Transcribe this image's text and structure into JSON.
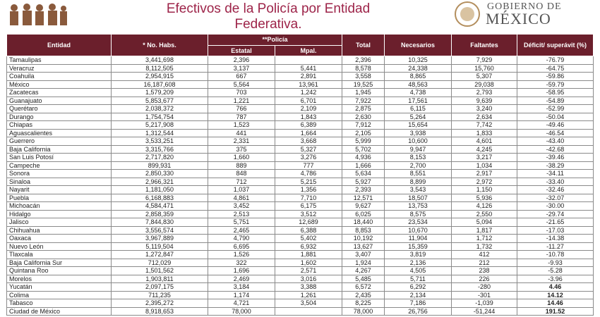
{
  "header": {
    "title_line1": "Efectivos de la Policía por Entidad",
    "title_line2": "Federativa.",
    "logo_line1": "GOBIERNO DE",
    "logo_line2": "MÉXICO"
  },
  "table": {
    "header_row": [
      "Entidad",
      "* No. Habs.",
      "**Policía",
      "Total",
      "Necesarios",
      "Faltantes",
      "Déficit/ superávit (%)"
    ],
    "sub_header": [
      "Estatal",
      "Mpal."
    ],
    "bold_rows": [
      28,
      29,
      30,
      31
    ],
    "rows": [
      [
        "Tamaulipas",
        "3,441,698",
        "2,396",
        null,
        "2,396",
        "10,325",
        "7,929",
        "-76.79"
      ],
      [
        "Veracruz",
        "8,112,505",
        "3,137",
        "5,441",
        "8,578",
        "24,338",
        "15,760",
        "-64.75"
      ],
      [
        "Coahuila",
        "2,954,915",
        "667",
        "2,891",
        "3,558",
        "8,865",
        "5,307",
        "-59.86"
      ],
      [
        "México",
        "16,187,608",
        "5,564",
        "13,961",
        "19,525",
        "48,563",
        "29,038",
        "-59.79"
      ],
      [
        "Zacatecas",
        "1,579,209",
        "703",
        "1,242",
        "1,945",
        "4,738",
        "2,793",
        "-58.95"
      ],
      [
        "Guanajuato",
        "5,853,677",
        "1,221",
        "6,701",
        "7,922",
        "17,561",
        "9,639",
        "-54.89"
      ],
      [
        "Querétaro",
        "2,038,372",
        "766",
        "2,109",
        "2,875",
        "6,115",
        "3,240",
        "-52.99"
      ],
      [
        "Durango",
        "1,754,754",
        "787",
        "1,843",
        "2,630",
        "5,264",
        "2,634",
        "-50.04"
      ],
      [
        "Chiapas",
        "5,217,908",
        "1,523",
        "6,389",
        "7,912",
        "15,654",
        "7,742",
        "-49.46"
      ],
      [
        "Aguascalientes",
        "1,312,544",
        "441",
        "1,664",
        "2,105",
        "3,938",
        "1,833",
        "-46.54"
      ],
      [
        "Guerrero",
        "3,533,251",
        "2,331",
        "3,668",
        "5,999",
        "10,600",
        "4,601",
        "-43.40"
      ],
      [
        "Baja California",
        "3,315,766",
        "375",
        "5,327",
        "5,702",
        "9,947",
        "4,245",
        "-42.68"
      ],
      [
        "San Luis Potosí",
        "2,717,820",
        "1,660",
        "3,276",
        "4,936",
        "8,153",
        "3,217",
        "-39.46"
      ],
      [
        "Campeche",
        "899,931",
        "889",
        "777",
        "1,666",
        "2,700",
        "1,034",
        "-38.29"
      ],
      [
        "Sonora",
        "2,850,330",
        "848",
        "4,786",
        "5,634",
        "8,551",
        "2,917",
        "-34.11"
      ],
      [
        "Sinaloa",
        "2,966,321",
        "712",
        "5,215",
        "5,927",
        "8,899",
        "2,972",
        "-33.40"
      ],
      [
        "Nayarit",
        "1,181,050",
        "1,037",
        "1,356",
        "2,393",
        "3,543",
        "1,150",
        "-32.46"
      ],
      [
        "Puebla",
        "6,168,883",
        "4,861",
        "7,710",
        "12,571",
        "18,507",
        "5,936",
        "-32.07"
      ],
      [
        "Michoacán",
        "4,584,471",
        "3,452",
        "6,175",
        "9,627",
        "13,753",
        "4,126",
        "-30.00"
      ],
      [
        "Hidalgo",
        "2,858,359",
        "2,513",
        "3,512",
        "6,025",
        "8,575",
        "2,550",
        "-29.74"
      ],
      [
        "Jalisco",
        "7,844,830",
        "5,751",
        "12,689",
        "18,440",
        "23,534",
        "5,094",
        "-21.65"
      ],
      [
        "Chihuahua",
        "3,556,574",
        "2,465",
        "6,388",
        "8,853",
        "10,670",
        "1,817",
        "-17.03"
      ],
      [
        "Oaxaca",
        "3,967,889",
        "4,790",
        "5,402",
        "10,192",
        "11,904",
        "1,712",
        "-14.38"
      ],
      [
        "Nuevo León",
        "5,119,504",
        "6,695",
        "6,932",
        "13,627",
        "15,359",
        "1,732",
        "-11.27"
      ],
      [
        "Tlaxcala",
        "1,272,847",
        "1,526",
        "1,881",
        "3,407",
        "3,819",
        "412",
        "-10.78"
      ],
      [
        "Baja California Sur",
        "712,029",
        "322",
        "1,602",
        "1,924",
        "2,136",
        "212",
        "-9.93"
      ],
      [
        "Quintana Roo",
        "1,501,562",
        "1,696",
        "2,571",
        "4,267",
        "4,505",
        "238",
        "-5.28"
      ],
      [
        "Morelos",
        "1,903,811",
        "2,469",
        "3,016",
        "5,485",
        "5,711",
        "226",
        "-3.96"
      ],
      [
        "Yucatán",
        "2,097,175",
        "3,184",
        "3,388",
        "6,572",
        "6,292",
        "-280",
        "4.46"
      ],
      [
        "Colima",
        "711,235",
        "1,174",
        "1,261",
        "2,435",
        "2,134",
        "-301",
        "14.12"
      ],
      [
        "Tabasco",
        "2,395,272",
        "4,721",
        "3,504",
        "8,225",
        "7,186",
        "-1,039",
        "14.46"
      ],
      [
        "Ciudad de México",
        "8,918,653",
        "78,000",
        null,
        "78,000",
        "26,756",
        "-51,244",
        "191.52"
      ]
    ]
  }
}
